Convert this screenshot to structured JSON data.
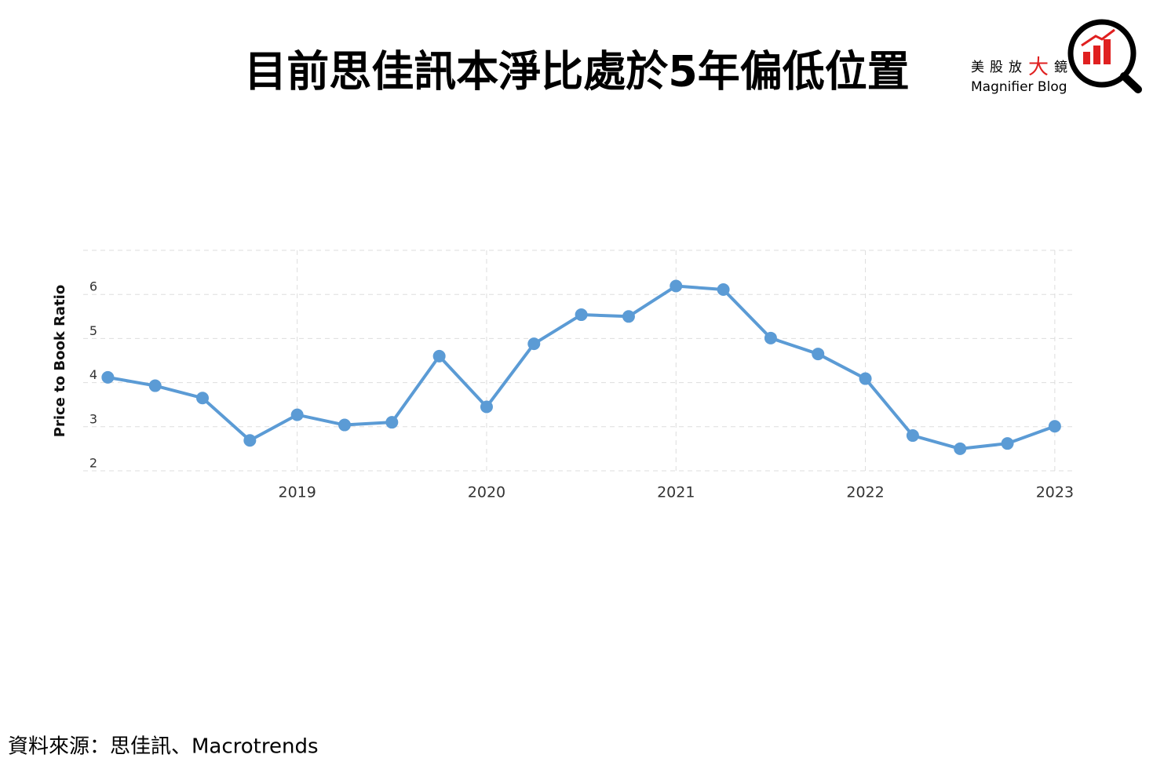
{
  "logo": {
    "chars": [
      "美",
      "股",
      "放",
      "大",
      "鏡"
    ],
    "subtitle": "Magnifier Blog"
  },
  "source": "資料來源：思佳訊、Macrotrends",
  "chart_data": {
    "type": "line",
    "title": "目前思佳訊本淨比處於5年偏低位置",
    "y_label": "Price to Book Ratio",
    "x": [
      2018,
      2018.25,
      2018.5,
      2018.75,
      2019,
      2019.25,
      2019.5,
      2019.75,
      2020,
      2020.25,
      2020.5,
      2020.75,
      2021,
      2021.25,
      2021.5,
      2021.75,
      2022,
      2022.25,
      2022.5,
      2022.75,
      2023
    ],
    "series": [
      {
        "name": "Price to Book Ratio",
        "color": "#5b9bd5",
        "values": [
          4.12,
          3.93,
          3.65,
          2.69,
          3.27,
          3.04,
          3.1,
          4.6,
          3.45,
          4.88,
          5.54,
          5.5,
          6.19,
          6.11,
          5.01,
          4.65,
          4.09,
          2.8,
          2.5,
          2.62,
          3.01
        ]
      }
    ],
    "xlim": [
      2017.87,
      2023.1
    ],
    "ylim": [
      2,
      7
    ],
    "xticks": [
      2019,
      2020,
      2021,
      2022,
      2023
    ],
    "yticks": [
      2,
      3,
      4,
      5,
      6
    ],
    "grid": true
  }
}
